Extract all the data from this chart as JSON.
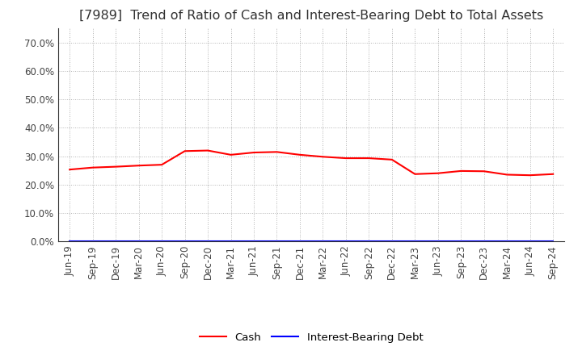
{
  "title": "[7989]  Trend of Ratio of Cash and Interest-Bearing Debt to Total Assets",
  "x_labels": [
    "Jun-19",
    "Sep-19",
    "Dec-19",
    "Mar-20",
    "Jun-20",
    "Sep-20",
    "Dec-20",
    "Mar-21",
    "Jun-21",
    "Sep-21",
    "Dec-21",
    "Mar-22",
    "Jun-22",
    "Sep-22",
    "Dec-22",
    "Mar-23",
    "Jun-23",
    "Sep-23",
    "Dec-23",
    "Mar-24",
    "Jun-24",
    "Sep-24"
  ],
  "cash_values": [
    0.253,
    0.26,
    0.263,
    0.267,
    0.27,
    0.318,
    0.32,
    0.305,
    0.313,
    0.315,
    0.305,
    0.298,
    0.293,
    0.293,
    0.288,
    0.237,
    0.24,
    0.248,
    0.247,
    0.235,
    0.233,
    0.237
  ],
  "ibd_values": [
    0.0,
    0.0,
    0.0,
    0.0,
    0.0,
    0.0,
    0.0,
    0.0,
    0.0,
    0.0,
    0.0,
    0.0,
    0.0,
    0.0,
    0.0,
    0.0,
    0.0,
    0.0,
    0.0,
    0.0,
    0.0,
    0.0
  ],
  "cash_color": "#FF0000",
  "ibd_color": "#0000FF",
  "background_color": "#FFFFFF",
  "plot_bg_color": "#FFFFFF",
  "grid_color": "#AAAAAA",
  "ylim": [
    0.0,
    0.75
  ],
  "yticks": [
    0.0,
    0.1,
    0.2,
    0.3,
    0.4,
    0.5,
    0.6,
    0.7
  ],
  "legend_cash": "Cash",
  "legend_ibd": "Interest-Bearing Debt",
  "title_fontsize": 11.5,
  "tick_fontsize": 8.5,
  "legend_fontsize": 9.5,
  "title_color": "#333333"
}
